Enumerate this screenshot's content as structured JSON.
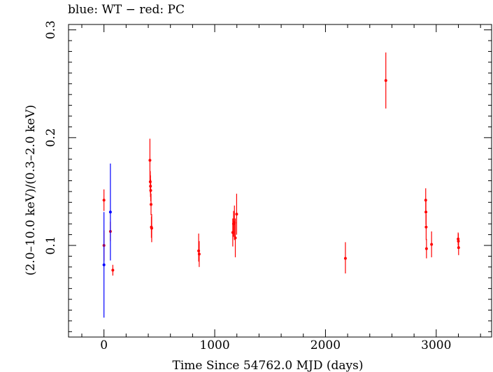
{
  "chart_data": {
    "type": "scatter",
    "title": "blue: WT − red: PC",
    "xlabel": "Time Since 54762.0 MJD (days)",
    "ylabel": "(2.0–10.0 keV)/(0.3–2.0 keV)",
    "xlim": [
      -320,
      3500
    ],
    "ylim": [
      0.015,
      0.305
    ],
    "x_ticks": [
      0,
      1000,
      2000,
      3000
    ],
    "x_tick_labels": [
      "0",
      "1000",
      "2000",
      "3000"
    ],
    "y_ticks": [
      0.1,
      0.2,
      0.3
    ],
    "y_tick_labels": [
      "0.1",
      "0.2",
      "0.3"
    ],
    "grid": false,
    "series": [
      {
        "name": "WT",
        "color": "#0000ff",
        "points": [
          {
            "x": 0,
            "y": 0.082,
            "ylo": 0.033,
            "yhi": 0.131
          },
          {
            "x": 58,
            "y": 0.131,
            "ylo": 0.086,
            "yhi": 0.176
          }
        ]
      },
      {
        "name": "PC",
        "color": "#ff0000",
        "points": [
          {
            "x": 0,
            "y": 0.142,
            "ylo": 0.132,
            "yhi": 0.152
          },
          {
            "x": 0,
            "y": 0.1,
            "ylo": 0.086,
            "yhi": 0.114
          },
          {
            "x": 58,
            "y": 0.113,
            "ylo": 0.104,
            "yhi": 0.122
          },
          {
            "x": 80,
            "y": 0.077,
            "ylo": 0.072,
            "yhi": 0.082
          },
          {
            "x": 415,
            "y": 0.179,
            "ylo": 0.159,
            "yhi": 0.199
          },
          {
            "x": 418,
            "y": 0.159,
            "ylo": 0.149,
            "yhi": 0.169
          },
          {
            "x": 420,
            "y": 0.155,
            "ylo": 0.145,
            "yhi": 0.165
          },
          {
            "x": 422,
            "y": 0.151,
            "ylo": 0.141,
            "yhi": 0.161
          },
          {
            "x": 425,
            "y": 0.138,
            "ylo": 0.128,
            "yhi": 0.148
          },
          {
            "x": 428,
            "y": 0.117,
            "ylo": 0.107,
            "yhi": 0.127
          },
          {
            "x": 431,
            "y": 0.116,
            "ylo": 0.103,
            "yhi": 0.129
          },
          {
            "x": 855,
            "y": 0.095,
            "ylo": 0.085,
            "yhi": 0.111
          },
          {
            "x": 860,
            "y": 0.092,
            "ylo": 0.08,
            "yhi": 0.104
          },
          {
            "x": 1163,
            "y": 0.112,
            "ylo": 0.099,
            "yhi": 0.125
          },
          {
            "x": 1170,
            "y": 0.12,
            "ylo": 0.108,
            "yhi": 0.132
          },
          {
            "x": 1178,
            "y": 0.121,
            "ylo": 0.105,
            "yhi": 0.137
          },
          {
            "x": 1186,
            "y": 0.107,
            "ylo": 0.089,
            "yhi": 0.125
          },
          {
            "x": 1198,
            "y": 0.129,
            "ylo": 0.11,
            "yhi": 0.148
          },
          {
            "x": 2180,
            "y": 0.088,
            "ylo": 0.074,
            "yhi": 0.103
          },
          {
            "x": 2545,
            "y": 0.253,
            "ylo": 0.227,
            "yhi": 0.279
          },
          {
            "x": 2905,
            "y": 0.142,
            "ylo": 0.13,
            "yhi": 0.153
          },
          {
            "x": 2907,
            "y": 0.131,
            "ylo": 0.119,
            "yhi": 0.143
          },
          {
            "x": 2909,
            "y": 0.117,
            "ylo": 0.105,
            "yhi": 0.129
          },
          {
            "x": 2912,
            "y": 0.097,
            "ylo": 0.088,
            "yhi": 0.106
          },
          {
            "x": 2958,
            "y": 0.101,
            "ylo": 0.089,
            "yhi": 0.113
          },
          {
            "x": 3198,
            "y": 0.106,
            "ylo": 0.1,
            "yhi": 0.112
          },
          {
            "x": 3200,
            "y": 0.104,
            "ylo": 0.097,
            "yhi": 0.111
          },
          {
            "x": 3202,
            "y": 0.098,
            "ylo": 0.091,
            "yhi": 0.105
          }
        ]
      }
    ]
  }
}
